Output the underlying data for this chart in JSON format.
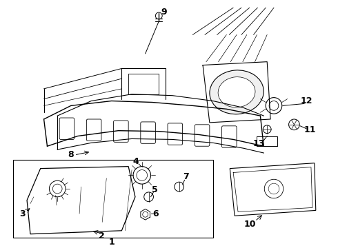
{
  "bg_color": "#ffffff",
  "line_color": "#000000",
  "text_color": "#000000",
  "fontsize": 9
}
